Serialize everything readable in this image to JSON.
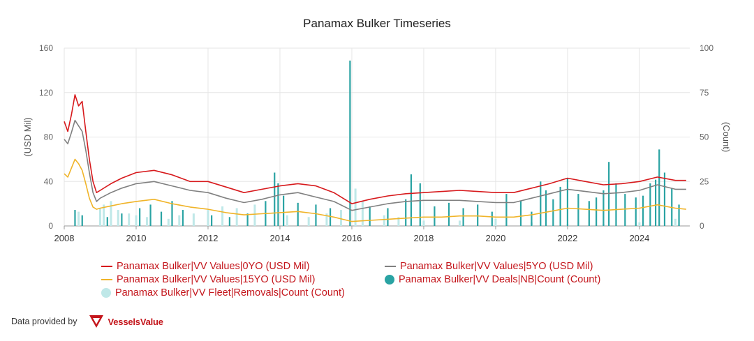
{
  "chart_data": {
    "type": "line",
    "title": "Panamax Bulker Timeseries",
    "ylabel": "(USD Mil)",
    "y2label": "(Count)",
    "ylim": [
      0,
      160
    ],
    "y2lim": [
      0,
      100
    ],
    "yticks": [
      "0",
      "40",
      "80",
      "120",
      "160"
    ],
    "y2ticks": [
      "0",
      "25",
      "50",
      "75",
      "100"
    ],
    "xlim": [
      2008,
      2025.4
    ],
    "xticks": [
      "2008",
      "2010",
      "2012",
      "2014",
      "2016",
      "2018",
      "2020",
      "2022",
      "2024"
    ],
    "grid": true,
    "legend_position": "bottom",
    "series": [
      {
        "name": "Panamax Bulker|VV Values|0YO (USD Mil)",
        "axis": "left",
        "kind": "line",
        "color": "#d7191c",
        "x": [
          2008.0,
          2008.1,
          2008.2,
          2008.3,
          2008.4,
          2008.5,
          2008.6,
          2008.7,
          2008.8,
          2008.9,
          2009.0,
          2009.3,
          2009.6,
          2010.0,
          2010.5,
          2011.0,
          2011.5,
          2012.0,
          2012.5,
          2013.0,
          2013.5,
          2014.0,
          2014.5,
          2015.0,
          2015.5,
          2016.0,
          2016.5,
          2017.0,
          2017.5,
          2018.0,
          2018.5,
          2019.0,
          2019.5,
          2020.0,
          2020.5,
          2021.0,
          2021.5,
          2022.0,
          2022.5,
          2023.0,
          2023.5,
          2024.0,
          2024.5,
          2025.0,
          2025.3
        ],
        "y": [
          94,
          85,
          100,
          118,
          108,
          112,
          85,
          60,
          40,
          30,
          32,
          38,
          43,
          48,
          50,
          46,
          40,
          40,
          35,
          30,
          33,
          36,
          38,
          36,
          30,
          20,
          24,
          27,
          29,
          30,
          31,
          32,
          31,
          30,
          30,
          34,
          38,
          43,
          40,
          37,
          38,
          40,
          44,
          41,
          41
        ]
      },
      {
        "name": "Panamax Bulker|VV Values|5YO (USD Mil)",
        "axis": "left",
        "kind": "line",
        "color": "#808080",
        "x": [
          2008.0,
          2008.1,
          2008.2,
          2008.3,
          2008.4,
          2008.5,
          2008.6,
          2008.7,
          2008.8,
          2008.9,
          2009.0,
          2009.3,
          2009.6,
          2010.0,
          2010.5,
          2011.0,
          2011.5,
          2012.0,
          2012.5,
          2013.0,
          2013.5,
          2014.0,
          2014.5,
          2015.0,
          2015.5,
          2016.0,
          2016.5,
          2017.0,
          2017.5,
          2018.0,
          2018.5,
          2019.0,
          2019.5,
          2020.0,
          2020.5,
          2021.0,
          2021.5,
          2022.0,
          2022.5,
          2023.0,
          2023.5,
          2024.0,
          2024.5,
          2025.0,
          2025.3
        ],
        "y": [
          78,
          74,
          84,
          95,
          90,
          85,
          68,
          48,
          30,
          22,
          25,
          30,
          34,
          38,
          40,
          36,
          32,
          30,
          25,
          21,
          24,
          28,
          30,
          26,
          22,
          14,
          17,
          20,
          22,
          23,
          23,
          23,
          22,
          21,
          21,
          25,
          29,
          33,
          31,
          29,
          30,
          32,
          37,
          33,
          33
        ]
      },
      {
        "name": "Panamax Bulker|VV Values|15YO (USD Mil)",
        "axis": "left",
        "kind": "line",
        "color": "#f0b429",
        "x": [
          2008.0,
          2008.1,
          2008.2,
          2008.3,
          2008.4,
          2008.5,
          2008.6,
          2008.7,
          2008.8,
          2008.9,
          2009.0,
          2009.3,
          2009.6,
          2010.0,
          2010.5,
          2011.0,
          2011.5,
          2012.0,
          2012.5,
          2013.0,
          2013.5,
          2014.0,
          2014.5,
          2015.0,
          2015.5,
          2016.0,
          2016.5,
          2017.0,
          2017.5,
          2018.0,
          2018.5,
          2019.0,
          2019.5,
          2020.0,
          2020.5,
          2021.0,
          2021.5,
          2022.0,
          2022.5,
          2023.0,
          2023.5,
          2024.0,
          2024.5,
          2025.0,
          2025.3
        ],
        "y": [
          47,
          44,
          52,
          60,
          56,
          50,
          38,
          25,
          17,
          15,
          16,
          18,
          20,
          22,
          24,
          20,
          17,
          15,
          12,
          10,
          11,
          12,
          13,
          11,
          8,
          4,
          5,
          6,
          7,
          8,
          8,
          9,
          9,
          8,
          8,
          10,
          13,
          16,
          15,
          14,
          15,
          16,
          19,
          16,
          15
        ]
      },
      {
        "name": "Panamax Bulker|VV Deals|NB|Count (Count)",
        "axis": "right",
        "kind": "bar",
        "color": "#2aa3a3",
        "x": [
          2008.3,
          2008.5,
          2009.2,
          2009.6,
          2010.1,
          2010.4,
          2010.7,
          2011.0,
          2011.3,
          2012.1,
          2012.6,
          2013.1,
          2013.6,
          2013.85,
          2013.95,
          2014.1,
          2014.5,
          2015.0,
          2015.4,
          2015.95,
          2016.5,
          2017.0,
          2017.5,
          2017.65,
          2017.9,
          2018.3,
          2018.7,
          2019.1,
          2019.5,
          2019.9,
          2020.3,
          2020.7,
          2021.0,
          2021.25,
          2021.4,
          2021.6,
          2021.8,
          2022.0,
          2022.3,
          2022.6,
          2022.8,
          2023.0,
          2023.15,
          2023.35,
          2023.6,
          2023.9,
          2024.1,
          2024.3,
          2024.45,
          2024.55,
          2024.7,
          2024.9,
          2025.1
        ],
        "y": [
          9,
          6,
          5,
          7,
          10,
          12,
          8,
          14,
          9,
          6,
          5,
          7,
          14,
          30,
          24,
          17,
          13,
          12,
          10,
          93,
          11,
          10,
          15,
          29,
          24,
          11,
          13,
          10,
          12,
          8,
          18,
          14,
          8,
          25,
          20,
          15,
          22,
          27,
          18,
          14,
          16,
          20,
          36,
          24,
          18,
          16,
          17,
          24,
          26,
          43,
          30,
          21,
          12
        ]
      },
      {
        "name": "Panamax Bulker|VV Fleet|Removals|Count (Count)",
        "axis": "right",
        "kind": "bar",
        "color": "#bfe8e8",
        "x": [
          2008.4,
          2009.0,
          2009.1,
          2009.3,
          2009.5,
          2009.8,
          2010.0,
          2010.3,
          2010.9,
          2011.2,
          2011.6,
          2012.0,
          2012.4,
          2012.8,
          2013.3,
          2014.2,
          2014.8,
          2015.3,
          2015.7,
          2016.1,
          2016.3,
          2016.9,
          2017.3,
          2018.0,
          2019.0,
          2020.0,
          2021.0,
          2022.0,
          2023.0,
          2024.0,
          2025.0
        ],
        "y": [
          8,
          10,
          12,
          14,
          9,
          7,
          6,
          5,
          4,
          6,
          7,
          9,
          11,
          10,
          12,
          6,
          5,
          7,
          9,
          21,
          14,
          6,
          5,
          3,
          3,
          4,
          2,
          1,
          1,
          2,
          4
        ]
      }
    ]
  },
  "legend": [
    {
      "label": "Panamax Bulker|VV Values|0YO (USD Mil)",
      "color": "#d7191c",
      "marker": "line"
    },
    {
      "label": "Panamax Bulker|VV Values|5YO (USD Mil)",
      "color": "#808080",
      "marker": "line"
    },
    {
      "label": "Panamax Bulker|VV Values|15YO (USD Mil)",
      "color": "#f0b429",
      "marker": "line"
    },
    {
      "label": "Panamax Bulker|VV Deals|NB|Count (Count)",
      "color": "#2aa3a3",
      "marker": "dot"
    },
    {
      "label": "Panamax Bulker|VV Fleet|Removals|Count (Count)",
      "color": "#bfe8e8",
      "marker": "dot"
    }
  ],
  "footer": {
    "provided_by": "Data provided by",
    "brand_name": "VesselsValue",
    "brand_color": "#c4161c"
  }
}
